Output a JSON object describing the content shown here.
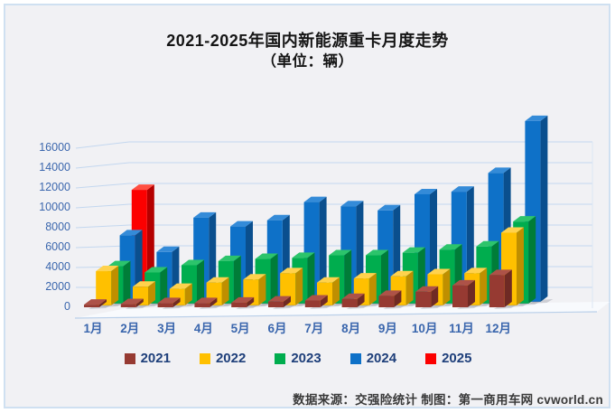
{
  "panel": {
    "background_color": "#f1f1f4",
    "border_color": "#cfe0f1"
  },
  "chart_data": {
    "type": "bar",
    "style": "3d-grouped-columns",
    "title_line1": "2021-2025年国内新能源重卡月度走势",
    "title_line2": "（单位：辆）",
    "categories": [
      "1月",
      "2月",
      "3月",
      "4月",
      "5月",
      "6月",
      "7月",
      "8月",
      "9月",
      "10月",
      "11月",
      "12月"
    ],
    "series": [
      {
        "name": "2021",
        "color": "#963a32",
        "side_color": "#6f2a24",
        "top_color": "#ad5248",
        "values": [
          250,
          300,
          400,
          400,
          450,
          550,
          650,
          800,
          1100,
          1500,
          2100,
          3100
        ]
      },
      {
        "name": "2022",
        "color": "#ffc000",
        "side_color": "#bf8f00",
        "top_color": "#ffd24d",
        "values": [
          3300,
          1800,
          1600,
          2200,
          2500,
          3100,
          2200,
          2600,
          2800,
          3000,
          3100,
          7000
        ]
      },
      {
        "name": "2023",
        "color": "#00ad4e",
        "side_color": "#007d38",
        "top_color": "#2cc46b",
        "values": [
          3600,
          3000,
          3700,
          4100,
          4300,
          4400,
          4650,
          4650,
          4900,
          5200,
          5500,
          7900
        ]
      },
      {
        "name": "2024",
        "color": "#0e71c8",
        "side_color": "#0a4f8e",
        "top_color": "#348bd8",
        "values": [
          6400,
          4800,
          8100,
          7250,
          7850,
          9600,
          9200,
          8800,
          10350,
          10600,
          12400,
          17400
        ]
      },
      {
        "name": "2025",
        "color": "#fc0000",
        "side_color": "#b50000",
        "top_color": "#ff4f42",
        "values": [
          10600,
          null,
          null,
          null,
          null,
          null,
          null,
          null,
          null,
          null,
          null,
          null
        ]
      }
    ],
    "ylim": [
      0,
      18000
    ],
    "yticks": [
      0,
      2000,
      4000,
      6000,
      8000,
      10000,
      12000,
      14000,
      16000
    ],
    "grid": true,
    "gridline_color": "#c3d7ef",
    "legend_position": "bottom",
    "axis_text_color": "#3a66ad"
  },
  "footer": {
    "source_note": "数据来源：交强险统计 制图：第一商用车网 cvworld.cn"
  }
}
